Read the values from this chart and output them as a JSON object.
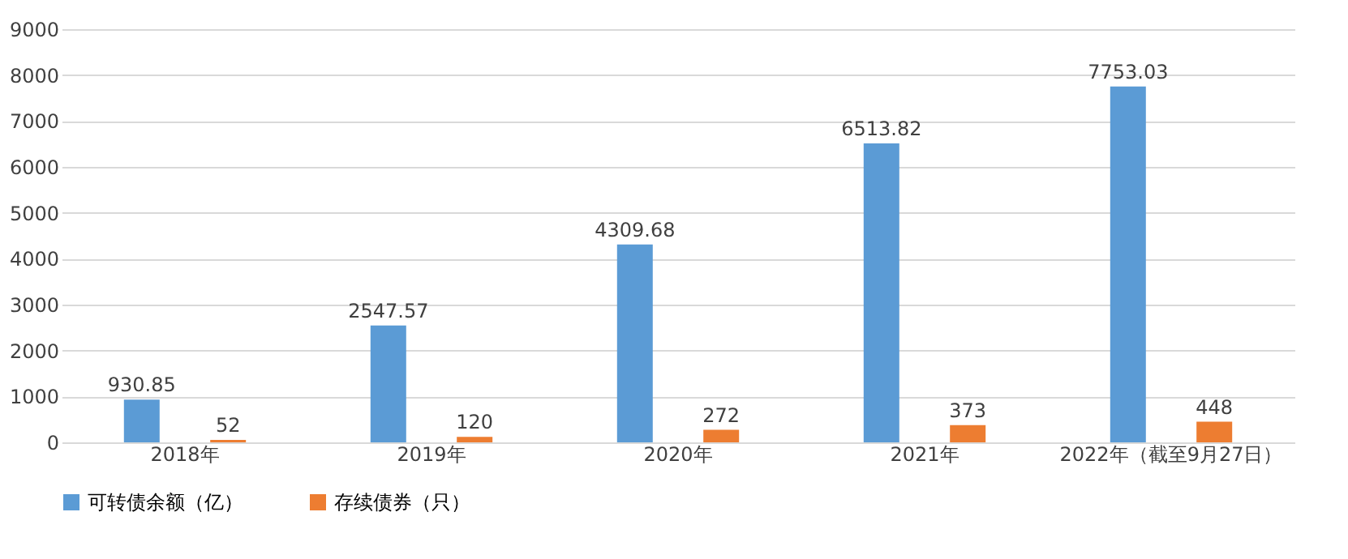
{
  "chart_data": {
    "type": "bar",
    "categories": [
      "2018年",
      "2019年",
      "2020年",
      "2021年",
      "2022年（截至9月27日）"
    ],
    "series": [
      {
        "name": "可转债余额（亿）",
        "color": "#5b9bd5",
        "values": [
          930.85,
          2547.57,
          4309.68,
          6513.82,
          7753.03
        ]
      },
      {
        "name": "存续债券（只）",
        "color": "#ed7d31",
        "values": [
          52,
          120,
          272,
          373,
          448
        ]
      }
    ],
    "ylim": [
      0,
      9000
    ],
    "yticks": [
      0,
      1000,
      2000,
      3000,
      4000,
      5000,
      6000,
      7000,
      8000,
      9000
    ],
    "grid": "y",
    "legend": "bottom",
    "data_labels": true
  }
}
